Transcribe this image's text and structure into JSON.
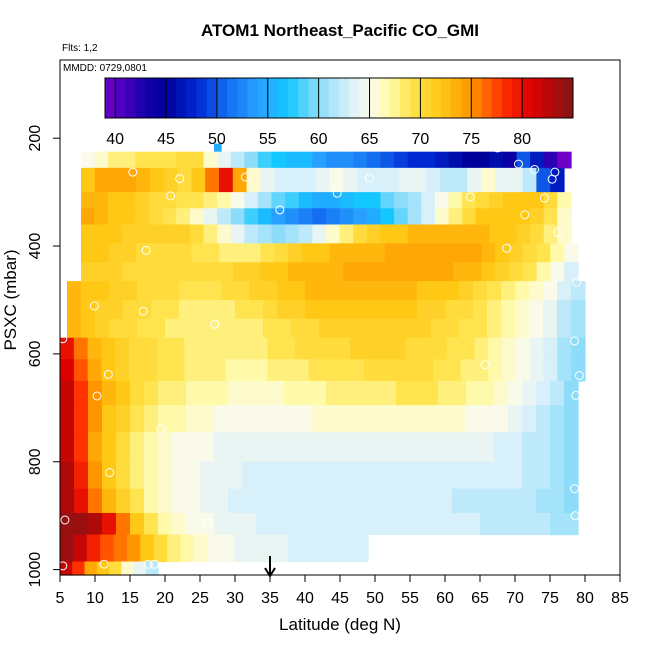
{
  "chart_data": {
    "type": "heatmap",
    "title": "ATOM1 Northeast_Pacific CO_GMI",
    "flights_label": "Flts: 1,2",
    "date_label": "MMDD: 0729,0801",
    "xlabel": "Latitude (deg N)",
    "ylabel": "PSXC (mbar)",
    "xlim": [
      5,
      85
    ],
    "ylim": [
      1010,
      55
    ],
    "x_ticks": [
      "5",
      "10",
      "15",
      "20",
      "25",
      "30",
      "35",
      "40",
      "45",
      "50",
      "55",
      "60",
      "65",
      "70",
      "75",
      "80",
      "85"
    ],
    "y_ticks": [
      "200",
      "400",
      "600",
      "800",
      "1000"
    ],
    "grid": false,
    "colorbar": {
      "ticks": [
        "40",
        "45",
        "50",
        "55",
        "60",
        "65",
        "70",
        "75",
        "80"
      ],
      "range": [
        39,
        85
      ]
    },
    "arrow_marker": {
      "latitude": 35
    },
    "rows": [
      {
        "p_top": 210,
        "p_bot": 225,
        "lat_start": 27,
        "lat_end": 28,
        "values": [
          55
        ]
      },
      {
        "p_top": 225,
        "p_bot": 255,
        "lat_start": 8,
        "lat_end": 78,
        "values": [
          65,
          66,
          68,
          68,
          69,
          69,
          69,
          70,
          70,
          66,
          64,
          62,
          60,
          58,
          57,
          56,
          56,
          54,
          53,
          53,
          52,
          51,
          50,
          49,
          48,
          48,
          47,
          46,
          45,
          45,
          46,
          44,
          50,
          47,
          42,
          38
        ]
      },
      {
        "p_top": 255,
        "p_bot": 300,
        "lat_start": 8,
        "lat_end": 77,
        "values": [
          72,
          74,
          74,
          74,
          73,
          72,
          71,
          70,
          72,
          76,
          80,
          74,
          66,
          64,
          63,
          63,
          63,
          64,
          65,
          64,
          63,
          63,
          63,
          64,
          64,
          63,
          62,
          62,
          64,
          66,
          64,
          64,
          62,
          50,
          47
        ]
      },
      {
        "p_top": 300,
        "p_bot": 330,
        "lat_start": 8,
        "lat_end": 78,
        "values": [
          73,
          73,
          72,
          72,
          71,
          70,
          70,
          69,
          69,
          68,
          67,
          65,
          63,
          61,
          59,
          58,
          56,
          55,
          55,
          56,
          57,
          57,
          59,
          60,
          61,
          63,
          65,
          67,
          69,
          70,
          71,
          72,
          72,
          72,
          70,
          67
        ]
      },
      {
        "p_top": 330,
        "p_bot": 360,
        "lat_start": 8,
        "lat_end": 78,
        "values": [
          74,
          73,
          72,
          72,
          71,
          70,
          69,
          68,
          66,
          64,
          62,
          60,
          58,
          56,
          54,
          53,
          52,
          51,
          52,
          53,
          54,
          55,
          57,
          59,
          61,
          63,
          66,
          68,
          70,
          72,
          72,
          72,
          72,
          71,
          69,
          66
        ]
      },
      {
        "p_top": 360,
        "p_bot": 395,
        "lat_start": 8,
        "lat_end": 78,
        "values": [
          72,
          72,
          72,
          71,
          71,
          71,
          71,
          71,
          70,
          68,
          66,
          64,
          62,
          61,
          60,
          61,
          62,
          64,
          66,
          68,
          70,
          71,
          72,
          72,
          73,
          73,
          73,
          73,
          73,
          73,
          72,
          72,
          71,
          70,
          68,
          66
        ]
      },
      {
        "p_top": 395,
        "p_bot": 430,
        "lat_start": 8,
        "lat_end": 79,
        "values": [
          72,
          72,
          71,
          71,
          70,
          70,
          70,
          70,
          69,
          69,
          68,
          68,
          68,
          69,
          70,
          71,
          72,
          72,
          73,
          73,
          73,
          73,
          74,
          74,
          74,
          74,
          74,
          74,
          74,
          73,
          72,
          71,
          70,
          69,
          67,
          65
        ]
      },
      {
        "p_top": 430,
        "p_bot": 465,
        "lat_start": 8,
        "lat_end": 79,
        "values": [
          71,
          71,
          71,
          70,
          70,
          70,
          70,
          70,
          70,
          70,
          70,
          71,
          71,
          72,
          72,
          73,
          73,
          73,
          73,
          74,
          74,
          74,
          74,
          74,
          74,
          74,
          74,
          73,
          73,
          72,
          71,
          70,
          69,
          67,
          65,
          63
        ]
      },
      {
        "p_top": 465,
        "p_bot": 500,
        "lat_start": 6,
        "lat_end": 80,
        "values": [
          73,
          72,
          72,
          71,
          71,
          70,
          70,
          70,
          69,
          69,
          69,
          70,
          70,
          71,
          71,
          72,
          72,
          73,
          73,
          73,
          73,
          73,
          73,
          73,
          73,
          72,
          72,
          72,
          71,
          70,
          69,
          68,
          67,
          66,
          65,
          63,
          62
        ]
      },
      {
        "p_top": 500,
        "p_bot": 535,
        "lat_start": 6,
        "lat_end": 80,
        "values": [
          73,
          72,
          71,
          71,
          70,
          70,
          69,
          69,
          68,
          68,
          68,
          68,
          69,
          69,
          70,
          71,
          71,
          72,
          72,
          72,
          72,
          72,
          72,
          72,
          72,
          71,
          71,
          70,
          70,
          69,
          68,
          67,
          66,
          65,
          64,
          62,
          61
        ]
      },
      {
        "p_top": 535,
        "p_bot": 570,
        "lat_start": 6,
        "lat_end": 80,
        "values": [
          73,
          72,
          71,
          70,
          70,
          69,
          69,
          68,
          68,
          68,
          68,
          68,
          68,
          68,
          69,
          69,
          70,
          70,
          71,
          71,
          71,
          71,
          71,
          71,
          71,
          71,
          70,
          70,
          69,
          69,
          68,
          67,
          66,
          65,
          64,
          62,
          61
        ]
      },
      {
        "p_top": 570,
        "p_bot": 610,
        "lat_start": 5,
        "lat_end": 80,
        "values": [
          80,
          76,
          73,
          72,
          71,
          70,
          70,
          69,
          69,
          68,
          68,
          68,
          68,
          68,
          68,
          69,
          69,
          70,
          70,
          70,
          70,
          71,
          71,
          71,
          71,
          70,
          70,
          70,
          69,
          69,
          68,
          67,
          66,
          65,
          64,
          63,
          61,
          60
        ]
      },
      {
        "p_top": 610,
        "p_bot": 650,
        "lat_start": 5,
        "lat_end": 80,
        "values": [
          81,
          77,
          74,
          72,
          71,
          70,
          70,
          69,
          69,
          68,
          68,
          68,
          67,
          67,
          67,
          68,
          68,
          68,
          69,
          69,
          69,
          69,
          70,
          70,
          70,
          70,
          70,
          69,
          69,
          68,
          68,
          67,
          66,
          65,
          64,
          63,
          61,
          60
        ]
      },
      {
        "p_top": 650,
        "p_bot": 695,
        "lat_start": 5,
        "lat_end": 79,
        "values": [
          82,
          78,
          75,
          73,
          72,
          70,
          69,
          68,
          68,
          67,
          67,
          67,
          66,
          66,
          66,
          66,
          67,
          67,
          67,
          68,
          68,
          68,
          68,
          68,
          69,
          69,
          69,
          68,
          68,
          67,
          67,
          66,
          65,
          64,
          63,
          62,
          60
        ]
      },
      {
        "p_top": 695,
        "p_bot": 745,
        "lat_start": 5,
        "lat_end": 79,
        "values": [
          82,
          78,
          75,
          72,
          71,
          69,
          68,
          67,
          67,
          66,
          66,
          65,
          65,
          65,
          65,
          65,
          65,
          65,
          66,
          66,
          66,
          66,
          66,
          66,
          66,
          66,
          66,
          66,
          66,
          65,
          65,
          65,
          64,
          63,
          62,
          61,
          60
        ]
      },
      {
        "p_top": 745,
        "p_bot": 800,
        "lat_start": 5,
        "lat_end": 79,
        "values": [
          82,
          78,
          74,
          72,
          70,
          68,
          67,
          66,
          65,
          65,
          65,
          64,
          64,
          64,
          64,
          64,
          64,
          64,
          64,
          64,
          64,
          64,
          64,
          64,
          64,
          64,
          64,
          64,
          64,
          64,
          64,
          63,
          63,
          62,
          62,
          61,
          60
        ]
      },
      {
        "p_top": 800,
        "p_bot": 850,
        "lat_start": 5,
        "lat_end": 79,
        "values": [
          83,
          79,
          75,
          72,
          70,
          68,
          67,
          66,
          65,
          65,
          64,
          64,
          64,
          63,
          63,
          63,
          63,
          63,
          63,
          63,
          63,
          63,
          63,
          63,
          63,
          63,
          63,
          63,
          63,
          63,
          63,
          63,
          63,
          62,
          62,
          61,
          60
        ]
      },
      {
        "p_top": 850,
        "p_bot": 895,
        "lat_start": 5,
        "lat_end": 79,
        "values": [
          83,
          80,
          76,
          73,
          71,
          69,
          67,
          66,
          65,
          65,
          64,
          64,
          63,
          63,
          63,
          63,
          63,
          63,
          63,
          63,
          63,
          63,
          63,
          63,
          63,
          63,
          63,
          63,
          62,
          62,
          62,
          62,
          62,
          62,
          61,
          61,
          60
        ]
      },
      {
        "p_top": 895,
        "p_bot": 935,
        "lat_start": 5,
        "lat_end": 79,
        "values": [
          84,
          84,
          83,
          80,
          76,
          72,
          69,
          67,
          66,
          65,
          65,
          64,
          64,
          64,
          63,
          63,
          63,
          63,
          63,
          63,
          63,
          63,
          63,
          63,
          63,
          63,
          63,
          63,
          63,
          63,
          62,
          62,
          62,
          62,
          62,
          61,
          61
        ]
      },
      {
        "p_top": 935,
        "p_bot": 985,
        "lat_start": 5,
        "lat_end": 49,
        "values": [
          84,
          82,
          79,
          77,
          76,
          75,
          72,
          70,
          68,
          67,
          66,
          65,
          65,
          64,
          64,
          64,
          64,
          63,
          63,
          63,
          63,
          63,
          63
        ]
      },
      {
        "p_top": 985,
        "p_bot": 1010,
        "lat_start": 5,
        "lat_end": 19,
        "values": [
          82,
          78,
          74,
          72,
          70,
          66,
          64,
          62
        ]
      }
    ],
    "markers": [
      {
        "lat": 27.2,
        "p": 200
      },
      {
        "lat": 8.6,
        "p": 240
      },
      {
        "lat": 67.5,
        "p": 218
      },
      {
        "lat": 70.5,
        "p": 248
      },
      {
        "lat": 72.8,
        "p": 258
      },
      {
        "lat": 75.7,
        "p": 263
      },
      {
        "lat": 15.4,
        "p": 263
      },
      {
        "lat": 22.1,
        "p": 275
      },
      {
        "lat": 31.5,
        "p": 272
      },
      {
        "lat": 49.2,
        "p": 274
      },
      {
        "lat": 75.3,
        "p": 276
      },
      {
        "lat": 20.8,
        "p": 307
      },
      {
        "lat": 44.6,
        "p": 302
      },
      {
        "lat": 63.6,
        "p": 309
      },
      {
        "lat": 74.2,
        "p": 311
      },
      {
        "lat": 36.4,
        "p": 333
      },
      {
        "lat": 71.4,
        "p": 342
      },
      {
        "lat": 76.1,
        "p": 375
      },
      {
        "lat": 17.3,
        "p": 408
      },
      {
        "lat": 68.8,
        "p": 404
      },
      {
        "lat": 78.8,
        "p": 467
      },
      {
        "lat": 9.9,
        "p": 511
      },
      {
        "lat": 16.9,
        "p": 521
      },
      {
        "lat": 27.1,
        "p": 545
      },
      {
        "lat": 5.4,
        "p": 572
      },
      {
        "lat": 78.5,
        "p": 576
      },
      {
        "lat": 65.7,
        "p": 620
      },
      {
        "lat": 11.9,
        "p": 638
      },
      {
        "lat": 79.2,
        "p": 640
      },
      {
        "lat": 10.3,
        "p": 678
      },
      {
        "lat": 78.7,
        "p": 677
      },
      {
        "lat": 19.4,
        "p": 739
      },
      {
        "lat": 12.1,
        "p": 820
      },
      {
        "lat": 78.5,
        "p": 850
      },
      {
        "lat": 5.7,
        "p": 908
      },
      {
        "lat": 26.1,
        "p": 914
      },
      {
        "lat": 78.6,
        "p": 900
      },
      {
        "lat": 5.4,
        "p": 993
      },
      {
        "lat": 11.3,
        "p": 990
      },
      {
        "lat": 17.6,
        "p": 990
      },
      {
        "lat": 18.5,
        "p": 990
      }
    ]
  }
}
